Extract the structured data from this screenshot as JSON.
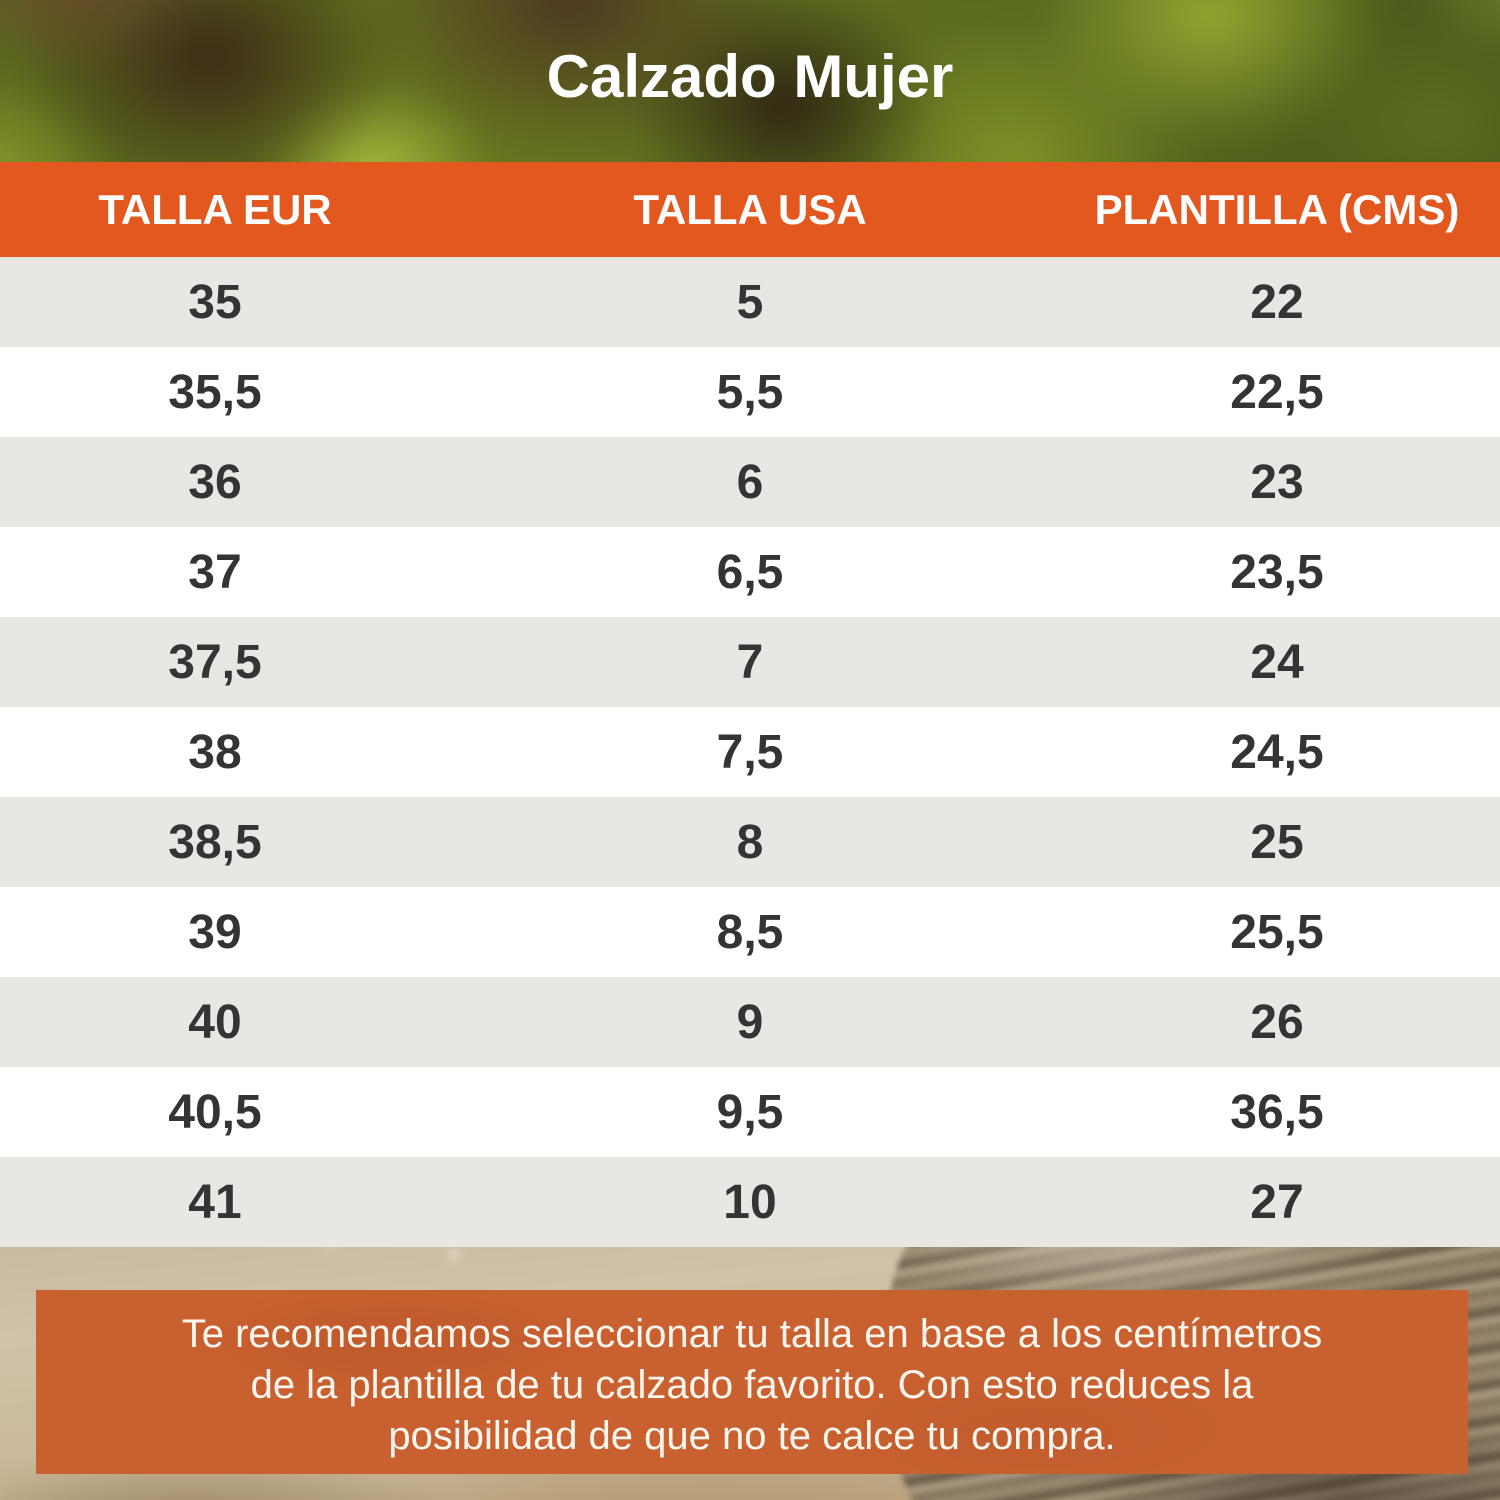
{
  "title": "Calzado Mujer",
  "chart_data": {
    "type": "table",
    "title": "Calzado Mujer",
    "columns": [
      "TALLA EUR",
      "TALLA USA",
      "PLANTILLA (CMS)"
    ],
    "rows": [
      [
        "35",
        "5",
        "22"
      ],
      [
        "35,5",
        "5,5",
        "22,5"
      ],
      [
        "36",
        "6",
        "23"
      ],
      [
        "37",
        "6,5",
        "23,5"
      ],
      [
        "37,5",
        "7",
        "24"
      ],
      [
        "38",
        "7,5",
        "24,5"
      ],
      [
        "38,5",
        "8",
        "25"
      ],
      [
        "39",
        "8,5",
        "25,5"
      ],
      [
        "40",
        "9",
        "26"
      ],
      [
        "40,5",
        "9,5",
        "36,5"
      ],
      [
        "41",
        "10",
        "27"
      ]
    ],
    "footnote": "Te recomendamos seleccionar tu talla en base a los centímetros de la plantilla de tu calzado favorito. Con esto reduces la posibilidad de que no te calce tu compra."
  },
  "banner": {
    "lines": [
      "Te recomendamos seleccionar tu talla en base a los centímetros",
      "de la plantilla de tu calzado favorito. Con esto reduces la",
      "posibilidad de que no te calce tu compra."
    ]
  },
  "colors": {
    "header_bg": "#e3581f",
    "banner_bg": "#c9602f",
    "row_alt_bg": "#e8e7e4",
    "row_bg": "#ffffff",
    "table_text": "#343432",
    "light_text": "#ffffff"
  }
}
